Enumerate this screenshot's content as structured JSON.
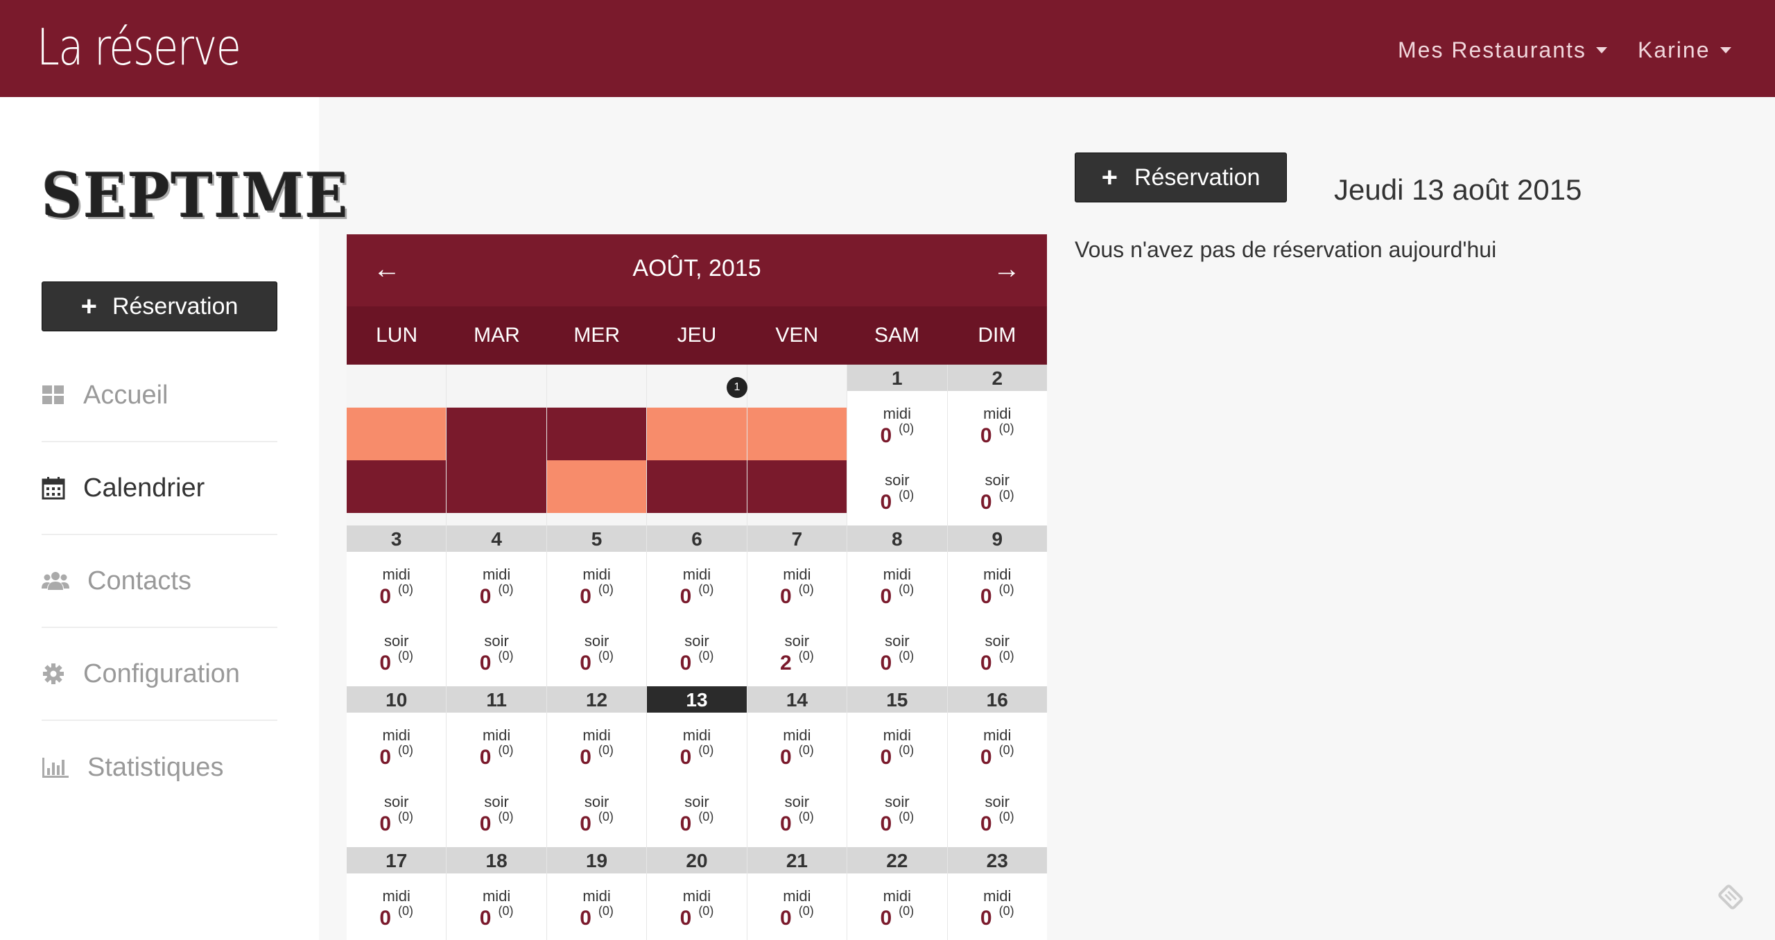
{
  "header": {
    "brand": "La réserve",
    "nav": [
      {
        "label": "Mes Restaurants"
      },
      {
        "label": "Karine"
      }
    ]
  },
  "sidebar": {
    "logo": "SEPTIME",
    "button_label": "Réservation",
    "items": [
      {
        "label": "Accueil",
        "icon": "dashboard-icon"
      },
      {
        "label": "Calendrier",
        "icon": "calendar-icon",
        "active": true
      },
      {
        "label": "Contacts",
        "icon": "users-icon"
      },
      {
        "label": "Configuration",
        "icon": "gear-icon"
      },
      {
        "label": "Statistiques",
        "icon": "bar-chart-icon"
      }
    ]
  },
  "calendar": {
    "title": "AOÛT, 2015",
    "prev_icon": "arrow-left-icon",
    "next_icon": "arrow-right-icon",
    "weekdays": [
      "LUN",
      "MAR",
      "MER",
      "JEU",
      "VEN",
      "SAM",
      "DIM"
    ],
    "midi_label": "midi",
    "soir_label": "soir",
    "first_week_badge": "1",
    "first_week_colors": {
      "dark": "#7a1a2c",
      "light": "#f78c6b"
    },
    "weeks": [
      [
        {
          "empty": true,
          "top": "light",
          "bottom": "dark"
        },
        {
          "empty": true,
          "top": "dark",
          "bottom": "dark"
        },
        {
          "empty": true,
          "top": "dark",
          "bottom": "light"
        },
        {
          "empty": true,
          "top": "light",
          "bottom": "dark",
          "badge": true
        },
        {
          "empty": true,
          "top": "light",
          "bottom": "dark"
        },
        {
          "day": "1",
          "midi": "0",
          "midi_sub": "(0)",
          "soir": "0",
          "soir_sub": "(0)"
        },
        {
          "day": "2",
          "midi": "0",
          "midi_sub": "(0)",
          "soir": "0",
          "soir_sub": "(0)"
        }
      ],
      [
        {
          "day": "3",
          "midi": "0",
          "midi_sub": "(0)",
          "soir": "0",
          "soir_sub": "(0)"
        },
        {
          "day": "4",
          "midi": "0",
          "midi_sub": "(0)",
          "soir": "0",
          "soir_sub": "(0)"
        },
        {
          "day": "5",
          "midi": "0",
          "midi_sub": "(0)",
          "soir": "0",
          "soir_sub": "(0)"
        },
        {
          "day": "6",
          "midi": "0",
          "midi_sub": "(0)",
          "soir": "0",
          "soir_sub": "(0)"
        },
        {
          "day": "7",
          "midi": "0",
          "midi_sub": "(0)",
          "soir": "2",
          "soir_sub": "(0)"
        },
        {
          "day": "8",
          "midi": "0",
          "midi_sub": "(0)",
          "soir": "0",
          "soir_sub": "(0)"
        },
        {
          "day": "9",
          "midi": "0",
          "midi_sub": "(0)",
          "soir": "0",
          "soir_sub": "(0)"
        }
      ],
      [
        {
          "day": "10",
          "midi": "0",
          "midi_sub": "(0)",
          "soir": "0",
          "soir_sub": "(0)"
        },
        {
          "day": "11",
          "midi": "0",
          "midi_sub": "(0)",
          "soir": "0",
          "soir_sub": "(0)"
        },
        {
          "day": "12",
          "midi": "0",
          "midi_sub": "(0)",
          "soir": "0",
          "soir_sub": "(0)"
        },
        {
          "day": "13",
          "today": true,
          "midi": "0",
          "midi_sub": "(0)",
          "soir": "0",
          "soir_sub": "(0)"
        },
        {
          "day": "14",
          "midi": "0",
          "midi_sub": "(0)",
          "soir": "0",
          "soir_sub": "(0)"
        },
        {
          "day": "15",
          "midi": "0",
          "midi_sub": "(0)",
          "soir": "0",
          "soir_sub": "(0)"
        },
        {
          "day": "16",
          "midi": "0",
          "midi_sub": "(0)",
          "soir": "0",
          "soir_sub": "(0)"
        }
      ],
      [
        {
          "day": "17",
          "midi": "0",
          "midi_sub": "(0)"
        },
        {
          "day": "18",
          "midi": "0",
          "midi_sub": "(0)"
        },
        {
          "day": "19",
          "midi": "0",
          "midi_sub": "(0)"
        },
        {
          "day": "20",
          "midi": "0",
          "midi_sub": "(0)"
        },
        {
          "day": "21",
          "midi": "0",
          "midi_sub": "(0)"
        },
        {
          "day": "22",
          "midi": "0",
          "midi_sub": "(0)"
        },
        {
          "day": "23",
          "midi": "0",
          "midi_sub": "(0)"
        }
      ]
    ]
  },
  "main": {
    "button_label": "Réservation",
    "date_title": "Jeudi 13 août 2015",
    "no_reservation": "Vous n'avez pas de réservation aujourd'hui",
    "corner_icon": "feedback-icon"
  },
  "colors": {
    "brand": "#7a1a2c",
    "accent_light": "#f78c6b",
    "button": "#333333"
  }
}
